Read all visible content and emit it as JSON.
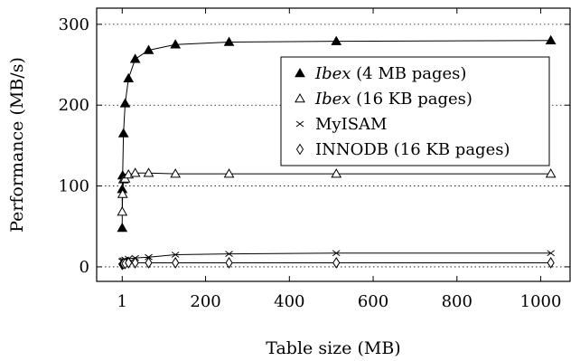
{
  "chart_data": {
    "type": "line",
    "xlabel": "Table size (MB)",
    "ylabel": "Performance (MB/s)",
    "xlim": [
      -60,
      1070
    ],
    "ylim": [
      -18,
      320
    ],
    "x_ticks": [
      1,
      200,
      400,
      600,
      800,
      1000
    ],
    "y_ticks": [
      0,
      100,
      200,
      300
    ],
    "grid": "horizontal-dotted",
    "legend_position": "top-right",
    "series": [
      {
        "name": "Ibex (4 MB pages)",
        "name_italic": "Ibex",
        "name_rest": " (4 MB pages)",
        "marker": "filled-triangle",
        "points": [
          [
            1,
            48
          ],
          [
            1,
            96
          ],
          [
            2,
            113
          ],
          [
            4,
            165
          ],
          [
            8,
            202
          ],
          [
            16,
            233
          ],
          [
            32,
            257
          ],
          [
            64,
            268
          ],
          [
            128,
            275
          ],
          [
            256,
            278
          ],
          [
            512,
            279
          ],
          [
            1024,
            280
          ]
        ]
      },
      {
        "name": "Ibex (16 KB pages)",
        "name_italic": "Ibex",
        "name_rest": " (16 KB pages)",
        "marker": "open-triangle",
        "points": [
          [
            1,
            68
          ],
          [
            2,
            90
          ],
          [
            4,
            108
          ],
          [
            8,
            109
          ],
          [
            16,
            114
          ],
          [
            32,
            116
          ],
          [
            64,
            116
          ],
          [
            128,
            115
          ],
          [
            256,
            115
          ],
          [
            512,
            115
          ],
          [
            1024,
            115
          ]
        ]
      },
      {
        "name": "MyISAM",
        "name_italic": "",
        "name_rest": "MyISAM",
        "marker": "cross",
        "points": [
          [
            1,
            7
          ],
          [
            2,
            7
          ],
          [
            4,
            8
          ],
          [
            8,
            9
          ],
          [
            16,
            10
          ],
          [
            32,
            11
          ],
          [
            64,
            12
          ],
          [
            128,
            15
          ],
          [
            256,
            16
          ],
          [
            512,
            17
          ],
          [
            1024,
            17
          ]
        ]
      },
      {
        "name": "INNODB (16 KB pages)",
        "name_italic": "",
        "name_rest": "INNODB (16 KB pages)",
        "marker": "diamond",
        "points": [
          [
            1,
            3
          ],
          [
            2,
            4
          ],
          [
            4,
            4
          ],
          [
            8,
            4
          ],
          [
            16,
            5
          ],
          [
            32,
            5
          ],
          [
            64,
            5
          ],
          [
            128,
            5
          ],
          [
            256,
            5
          ],
          [
            512,
            5
          ],
          [
            1024,
            5
          ]
        ]
      }
    ]
  }
}
